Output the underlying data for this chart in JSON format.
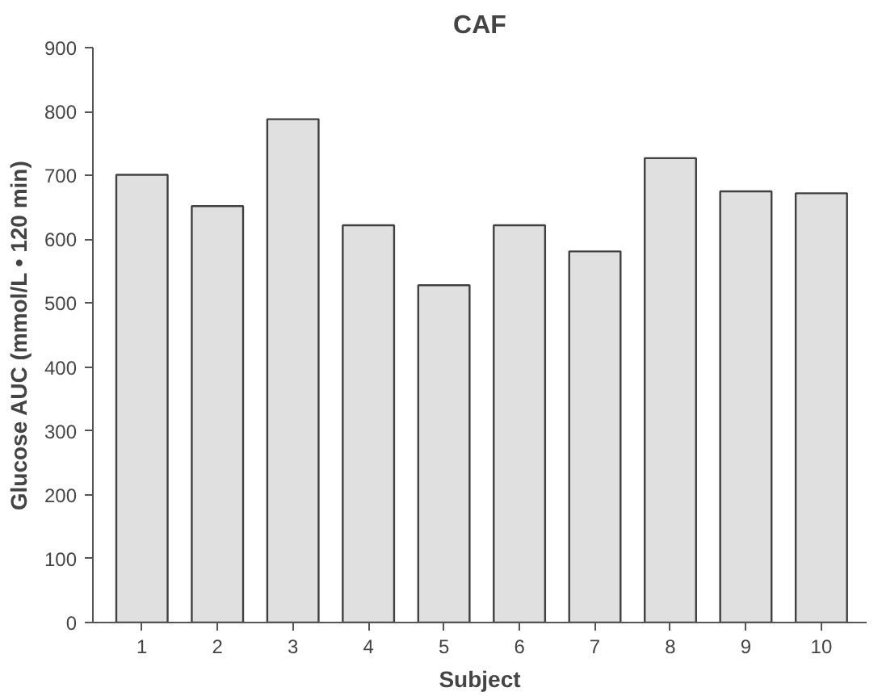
{
  "chart_data": {
    "type": "bar",
    "title": "CAF",
    "xlabel": "Subject",
    "ylabel": "Glucose AUC (mmol/L • 120 min)",
    "categories": [
      "1",
      "2",
      "3",
      "4",
      "5",
      "6",
      "7",
      "8",
      "9",
      "10"
    ],
    "values": [
      701,
      652,
      788,
      622,
      528,
      622,
      581,
      727,
      675,
      672
    ],
    "color": "#e0e0e0",
    "ylim": [
      0,
      900
    ],
    "yticks": [
      0,
      100,
      200,
      300,
      400,
      500,
      600,
      700,
      800,
      900
    ],
    "grid": false
  }
}
